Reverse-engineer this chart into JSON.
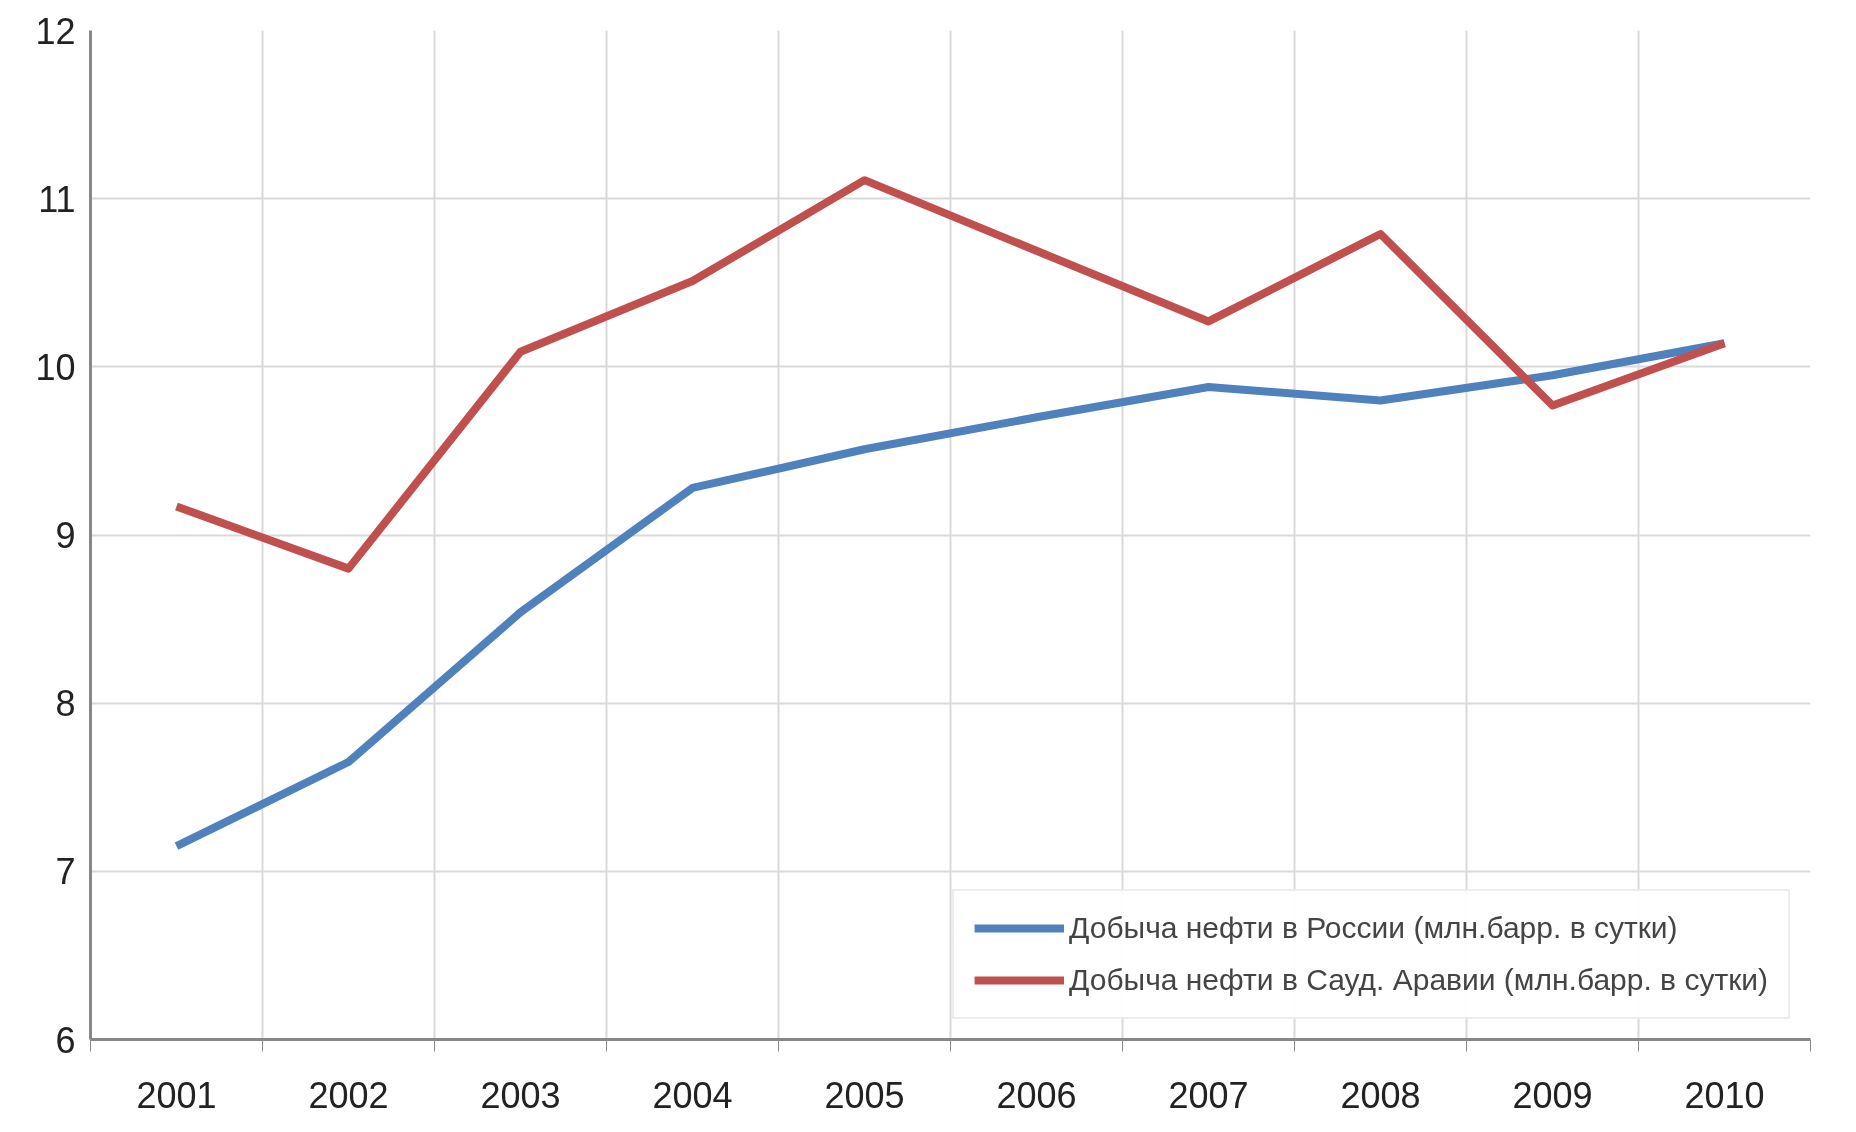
{
  "chart_data": {
    "type": "line",
    "categories": [
      "2001",
      "2002",
      "2003",
      "2004",
      "2005",
      "2006",
      "2007",
      "2008",
      "2009",
      "2010"
    ],
    "series": [
      {
        "name": "Добыча нефти в России (млн.барр. в сутки)",
        "color": "#4f81bd",
        "values": [
          7.15,
          7.65,
          8.54,
          9.28,
          9.51,
          9.7,
          9.88,
          9.8,
          9.95,
          10.14
        ]
      },
      {
        "name": "Добыча нефти в Сауд. Аравии (млн.барр. в сутки)",
        "color": "#c0504d",
        "values": [
          9.17,
          8.8,
          10.09,
          10.51,
          11.11,
          10.69,
          10.27,
          10.79,
          9.77,
          10.14
        ]
      }
    ],
    "ylim": [
      6,
      12
    ],
    "yticks": [
      6,
      7,
      8,
      9,
      10,
      11,
      12
    ],
    "grid": true,
    "legend": "bottom right",
    "marker": "none",
    "line_style": "solid"
  }
}
